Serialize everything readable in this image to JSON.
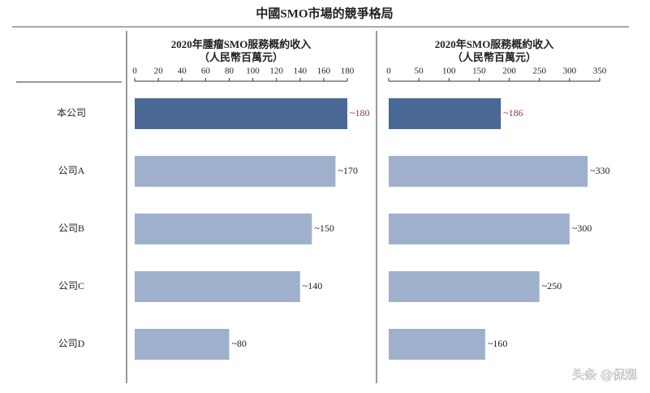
{
  "chart_data": {
    "type": "bar",
    "title": "中國SMO市場的競爭格局",
    "categories": [
      "本公司",
      "公司A",
      "公司B",
      "公司C",
      "公司D"
    ],
    "panels": [
      {
        "title": "2020年腫瘤SMO服務概約收入",
        "subtitle": "（人民幣百萬元）",
        "xlim": [
          0,
          180
        ],
        "xticks": [
          0,
          20,
          40,
          60,
          80,
          100,
          120,
          140,
          160,
          180
        ],
        "values": [
          180,
          170,
          150,
          140,
          80
        ],
        "value_labels": [
          "~180",
          "~170",
          "~150",
          "~140",
          "~80"
        ],
        "colors": [
          "#4a6895",
          "#9fb0cc",
          "#9fb0cc",
          "#9fb0cc",
          "#9fb0cc"
        ],
        "label_colors": [
          "#a0304a",
          "#222222",
          "#222222",
          "#222222",
          "#222222"
        ]
      },
      {
        "title": "2020年SMO服務概約收入",
        "subtitle": "（人民幣百萬元）",
        "xlim": [
          0,
          350
        ],
        "xticks": [
          0,
          50,
          100,
          150,
          200,
          250,
          300,
          350
        ],
        "values": [
          186,
          330,
          300,
          250,
          160
        ],
        "value_labels": [
          "~186",
          "~330",
          "~300",
          "~250",
          "~160"
        ],
        "colors": [
          "#4a6895",
          "#9fb0cc",
          "#9fb0cc",
          "#9fb0cc",
          "#9fb0cc"
        ],
        "label_colors": [
          "#a0304a",
          "#222222",
          "#222222",
          "#222222",
          "#222222"
        ]
      }
    ]
  },
  "watermark": "头条 @保观"
}
